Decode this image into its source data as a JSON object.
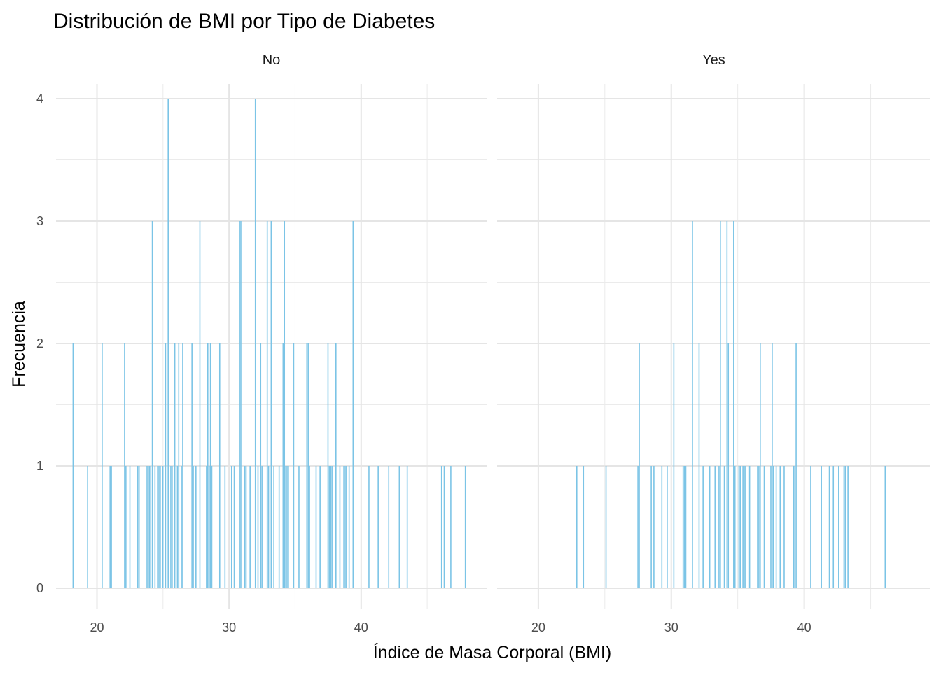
{
  "chart_data": {
    "type": "bar",
    "subtype": "faceted histogram",
    "title": "Distribución de BMI por Tipo de Diabetes",
    "xlabel": "Índice de Masa Corporal (BMI)",
    "ylabel": "Frecuencia",
    "binwidth": 0.1,
    "xlim": [
      16.9,
      49.5
    ],
    "ylim": [
      0,
      4
    ],
    "x_ticks": [
      20,
      30,
      40
    ],
    "y_ticks": [
      0,
      1,
      2,
      3,
      4
    ],
    "grid": true,
    "bar_color": "#7BC4E6",
    "panels": [
      {
        "label": "No",
        "bins": [
          [
            18.2,
            2
          ],
          [
            19.3,
            1
          ],
          [
            20.4,
            2
          ],
          [
            21.0,
            1
          ],
          [
            21.1,
            1
          ],
          [
            22.1,
            2
          ],
          [
            22.2,
            1
          ],
          [
            22.5,
            1
          ],
          [
            23.1,
            1
          ],
          [
            23.2,
            1
          ],
          [
            23.8,
            1
          ],
          [
            23.9,
            1
          ],
          [
            24.0,
            1
          ],
          [
            24.2,
            3
          ],
          [
            24.4,
            1
          ],
          [
            24.6,
            1
          ],
          [
            24.7,
            1
          ],
          [
            24.8,
            1
          ],
          [
            25.0,
            1
          ],
          [
            25.2,
            2
          ],
          [
            25.4,
            4
          ],
          [
            25.6,
            1
          ],
          [
            25.7,
            1
          ],
          [
            25.9,
            2
          ],
          [
            26.1,
            1
          ],
          [
            26.2,
            2
          ],
          [
            26.4,
            1
          ],
          [
            26.5,
            2
          ],
          [
            27.2,
            2
          ],
          [
            27.3,
            1
          ],
          [
            27.5,
            1
          ],
          [
            27.8,
            3
          ],
          [
            28.3,
            1
          ],
          [
            28.4,
            2
          ],
          [
            28.5,
            1
          ],
          [
            28.6,
            2
          ],
          [
            28.7,
            1
          ],
          [
            29.3,
            2
          ],
          [
            29.7,
            1
          ],
          [
            30.2,
            1
          ],
          [
            30.4,
            1
          ],
          [
            30.8,
            3
          ],
          [
            30.9,
            3
          ],
          [
            31.2,
            1
          ],
          [
            31.3,
            1
          ],
          [
            31.6,
            1
          ],
          [
            32.0,
            4
          ],
          [
            32.2,
            1
          ],
          [
            32.4,
            2
          ],
          [
            32.5,
            1
          ],
          [
            32.9,
            3
          ],
          [
            33.0,
            1
          ],
          [
            33.2,
            3
          ],
          [
            33.4,
            1
          ],
          [
            33.8,
            1
          ],
          [
            34.1,
            2
          ],
          [
            34.2,
            3
          ],
          [
            34.3,
            1
          ],
          [
            34.4,
            1
          ],
          [
            34.5,
            1
          ],
          [
            34.9,
            2
          ],
          [
            35.3,
            1
          ],
          [
            35.9,
            2
          ],
          [
            36.0,
            2
          ],
          [
            36.1,
            1
          ],
          [
            36.6,
            1
          ],
          [
            36.9,
            1
          ],
          [
            37.5,
            2
          ],
          [
            37.6,
            1
          ],
          [
            37.7,
            1
          ],
          [
            37.8,
            1
          ],
          [
            38.1,
            2
          ],
          [
            38.4,
            1
          ],
          [
            38.7,
            1
          ],
          [
            38.8,
            1
          ],
          [
            38.9,
            1
          ],
          [
            39.1,
            1
          ],
          [
            39.4,
            3
          ],
          [
            40.6,
            1
          ],
          [
            41.3,
            1
          ],
          [
            42.1,
            1
          ],
          [
            42.9,
            1
          ],
          [
            43.5,
            1
          ],
          [
            46.1,
            1
          ],
          [
            46.3,
            1
          ],
          [
            46.8,
            1
          ],
          [
            47.9,
            1
          ]
        ]
      },
      {
        "label": "Yes",
        "bins": [
          [
            22.9,
            1
          ],
          [
            23.4,
            1
          ],
          [
            25.1,
            1
          ],
          [
            27.5,
            1
          ],
          [
            27.6,
            2
          ],
          [
            28.5,
            1
          ],
          [
            28.7,
            1
          ],
          [
            29.3,
            1
          ],
          [
            29.7,
            1
          ],
          [
            30.2,
            2
          ],
          [
            30.9,
            1
          ],
          [
            31.0,
            1
          ],
          [
            31.1,
            1
          ],
          [
            31.6,
            3
          ],
          [
            32.1,
            2
          ],
          [
            32.4,
            1
          ],
          [
            32.9,
            1
          ],
          [
            33.3,
            1
          ],
          [
            33.6,
            1
          ],
          [
            33.7,
            3
          ],
          [
            34.0,
            1
          ],
          [
            34.2,
            3
          ],
          [
            34.3,
            2
          ],
          [
            34.7,
            3
          ],
          [
            34.8,
            1
          ],
          [
            35.1,
            1
          ],
          [
            35.2,
            1
          ],
          [
            35.4,
            1
          ],
          [
            35.5,
            1
          ],
          [
            35.6,
            1
          ],
          [
            35.9,
            1
          ],
          [
            36.5,
            1
          ],
          [
            36.6,
            1
          ],
          [
            36.7,
            2
          ],
          [
            37.0,
            1
          ],
          [
            37.5,
            1
          ],
          [
            37.6,
            2
          ],
          [
            37.7,
            1
          ],
          [
            37.9,
            1
          ],
          [
            38.2,
            1
          ],
          [
            38.5,
            1
          ],
          [
            39.2,
            1
          ],
          [
            39.3,
            1
          ],
          [
            39.4,
            2
          ],
          [
            40.5,
            1
          ],
          [
            41.3,
            1
          ],
          [
            41.9,
            1
          ],
          [
            42.2,
            1
          ],
          [
            42.6,
            1
          ],
          [
            43.0,
            1
          ],
          [
            43.1,
            1
          ],
          [
            43.3,
            1
          ],
          [
            46.1,
            1
          ]
        ]
      }
    ]
  }
}
